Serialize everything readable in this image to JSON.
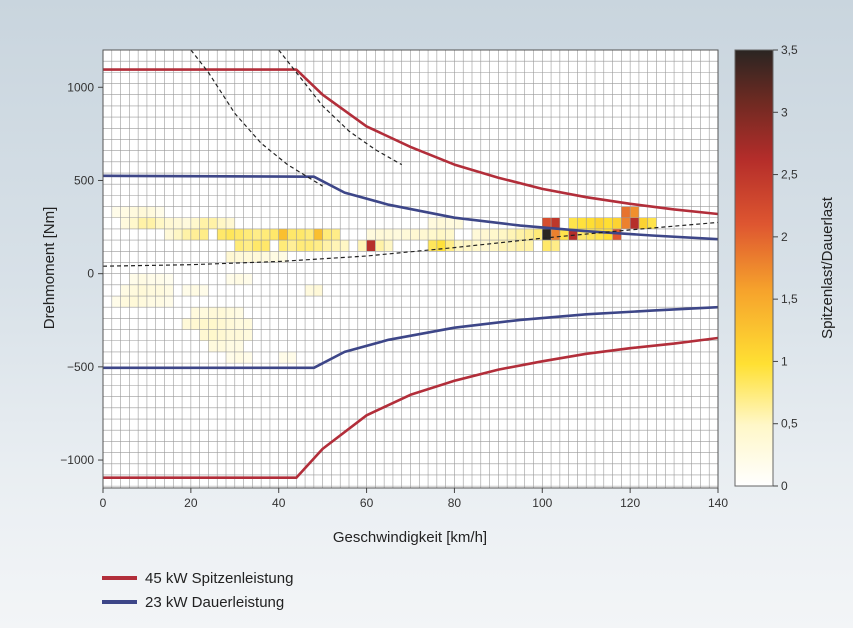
{
  "chart_data": {
    "type": "heatmap",
    "xlabel": "Geschwindigkeit [km/h]",
    "ylabel": "Drehmoment [Nm]",
    "colorbar_label": "Spitzenlast/Dauerlast",
    "xlim": [
      0,
      140
    ],
    "ylim": [
      -1150,
      1200
    ],
    "x_ticks": [
      0,
      20,
      40,
      60,
      80,
      100,
      120,
      140
    ],
    "x_tick_labels": [
      "0",
      "20",
      "40",
      "60",
      "80",
      "100",
      "120",
      "140"
    ],
    "y_ticks": [
      -1000,
      -500,
      0,
      500,
      1000
    ],
    "y_tick_labels": [
      "−1000",
      "−500",
      "0",
      "500",
      "1000"
    ],
    "colorbar_ticks": [
      0,
      0.5,
      1,
      1.5,
      2,
      2.5,
      3,
      3.5
    ],
    "colorbar_tick_labels": [
      "0",
      "0,5",
      "1",
      "1,5",
      "2",
      "2,5",
      "3",
      "3,5"
    ],
    "colorbar_range": [
      0,
      3.5
    ],
    "grid": true,
    "legend_position": "bottom-left",
    "series": [
      {
        "name": "45 kW Spitzenleistung",
        "color": "#b22e3a",
        "upper": [
          [
            0,
            1095
          ],
          [
            44,
            1095
          ],
          [
            50,
            960
          ],
          [
            60,
            790
          ],
          [
            70,
            680
          ],
          [
            80,
            585
          ],
          [
            90,
            515
          ],
          [
            100,
            455
          ],
          [
            110,
            410
          ],
          [
            120,
            375
          ],
          [
            130,
            345
          ],
          [
            140,
            320
          ]
        ],
        "lower": [
          [
            0,
            -1095
          ],
          [
            44,
            -1095
          ],
          [
            50,
            -940
          ],
          [
            60,
            -760
          ],
          [
            70,
            -650
          ],
          [
            80,
            -575
          ],
          [
            90,
            -515
          ],
          [
            100,
            -470
          ],
          [
            110,
            -430
          ],
          [
            120,
            -400
          ],
          [
            130,
            -375
          ],
          [
            140,
            -345
          ]
        ]
      },
      {
        "name": "23 kW Dauerleistung",
        "color": "#3d4688",
        "upper": [
          [
            0,
            525
          ],
          [
            48,
            520
          ],
          [
            55,
            435
          ],
          [
            65,
            370
          ],
          [
            80,
            300
          ],
          [
            95,
            258
          ],
          [
            110,
            228
          ],
          [
            125,
            205
          ],
          [
            140,
            185
          ]
        ],
        "lower": [
          [
            0,
            -505
          ],
          [
            48,
            -505
          ],
          [
            55,
            -420
          ],
          [
            65,
            -355
          ],
          [
            80,
            -290
          ],
          [
            95,
            -248
          ],
          [
            110,
            -218
          ],
          [
            125,
            -198
          ],
          [
            140,
            -180
          ]
        ]
      }
    ],
    "dashed_lines": [
      {
        "points": [
          [
            20,
            1200
          ],
          [
            24,
            1080
          ],
          [
            30,
            860
          ],
          [
            36,
            700
          ],
          [
            42,
            585
          ],
          [
            50,
            470
          ]
        ]
      },
      {
        "points": [
          [
            40,
            1200
          ],
          [
            44,
            1080
          ],
          [
            50,
            900
          ],
          [
            56,
            765
          ],
          [
            62,
            665
          ],
          [
            68,
            585
          ]
        ]
      },
      {
        "points": [
          [
            0,
            40
          ],
          [
            20,
            48
          ],
          [
            40,
            65
          ],
          [
            60,
            95
          ],
          [
            80,
            140
          ],
          [
            100,
            190
          ],
          [
            120,
            235
          ],
          [
            140,
            275
          ]
        ]
      }
    ],
    "cells": [
      [
        2,
        300,
        0.2
      ],
      [
        4,
        300,
        0.25
      ],
      [
        6,
        300,
        0.3
      ],
      [
        8,
        300,
        0.35
      ],
      [
        10,
        300,
        0.3
      ],
      [
        12,
        300,
        0.2
      ],
      [
        4,
        240,
        0.3
      ],
      [
        6,
        240,
        0.45
      ],
      [
        8,
        240,
        0.6
      ],
      [
        10,
        240,
        0.6
      ],
      [
        12,
        240,
        0.5
      ],
      [
        14,
        240,
        0.4
      ],
      [
        16,
        240,
        0.35
      ],
      [
        18,
        240,
        0.3
      ],
      [
        20,
        240,
        0.45
      ],
      [
        22,
        240,
        0.6
      ],
      [
        24,
        240,
        0.6
      ],
      [
        26,
        240,
        0.5
      ],
      [
        28,
        240,
        0.4
      ],
      [
        14,
        180,
        0.35
      ],
      [
        16,
        180,
        0.5
      ],
      [
        18,
        180,
        0.6
      ],
      [
        20,
        180,
        0.65
      ],
      [
        22,
        180,
        0.7
      ],
      [
        26,
        180,
        0.8
      ],
      [
        28,
        180,
        0.85
      ],
      [
        30,
        180,
        0.8
      ],
      [
        32,
        180,
        0.75
      ],
      [
        34,
        180,
        0.7
      ],
      [
        36,
        180,
        0.75
      ],
      [
        38,
        180,
        0.8
      ],
      [
        40,
        180,
        1.3
      ],
      [
        42,
        180,
        0.8
      ],
      [
        44,
        180,
        0.8
      ],
      [
        46,
        180,
        0.75
      ],
      [
        48,
        180,
        1.3
      ],
      [
        50,
        180,
        0.75
      ],
      [
        52,
        180,
        0.7
      ],
      [
        30,
        120,
        0.75
      ],
      [
        32,
        120,
        0.7
      ],
      [
        34,
        120,
        0.8
      ],
      [
        36,
        120,
        0.8
      ],
      [
        40,
        120,
        0.75
      ],
      [
        42,
        120,
        0.65
      ],
      [
        44,
        120,
        0.75
      ],
      [
        46,
        120,
        0.75
      ],
      [
        48,
        120,
        0.7
      ],
      [
        50,
        120,
        0.6
      ],
      [
        52,
        120,
        0.55
      ],
      [
        54,
        120,
        0.5
      ],
      [
        58,
        120,
        0.55
      ],
      [
        60,
        120,
        2.6
      ],
      [
        62,
        120,
        0.6
      ],
      [
        64,
        120,
        0.5
      ],
      [
        28,
        60,
        0.4
      ],
      [
        30,
        60,
        0.35
      ],
      [
        32,
        60,
        0.35
      ],
      [
        34,
        60,
        0.35
      ],
      [
        36,
        60,
        0.3
      ],
      [
        38,
        60,
        0.25
      ],
      [
        40,
        60,
        0.25
      ],
      [
        60,
        180,
        0.3
      ],
      [
        62,
        180,
        0.35
      ],
      [
        64,
        180,
        0.35
      ],
      [
        66,
        180,
        0.3
      ],
      [
        68,
        180,
        0.35
      ],
      [
        70,
        180,
        0.4
      ],
      [
        72,
        180,
        0.4
      ],
      [
        74,
        180,
        0.45
      ],
      [
        76,
        180,
        0.5
      ],
      [
        78,
        180,
        0.45
      ],
      [
        74,
        240,
        0.3
      ],
      [
        76,
        240,
        0.35
      ],
      [
        78,
        240,
        0.3
      ],
      [
        80,
        240,
        0.3
      ],
      [
        74,
        120,
        0.85
      ],
      [
        76,
        120,
        0.95
      ],
      [
        78,
        120,
        0.7
      ],
      [
        80,
        120,
        0.5
      ],
      [
        82,
        120,
        0.5
      ],
      [
        84,
        120,
        0.45
      ],
      [
        86,
        120,
        0.4
      ],
      [
        88,
        120,
        0.5
      ],
      [
        90,
        120,
        0.55
      ],
      [
        92,
        120,
        0.55
      ],
      [
        94,
        120,
        0.6
      ],
      [
        96,
        120,
        0.6
      ],
      [
        84,
        180,
        0.35
      ],
      [
        86,
        180,
        0.4
      ],
      [
        88,
        180,
        0.45
      ],
      [
        90,
        180,
        0.5
      ],
      [
        92,
        180,
        0.55
      ],
      [
        94,
        180,
        0.6
      ],
      [
        96,
        180,
        0.65
      ],
      [
        98,
        180,
        0.75
      ],
      [
        100,
        240,
        2.2
      ],
      [
        102,
        240,
        2.5
      ],
      [
        100,
        180,
        3.5
      ],
      [
        102,
        180,
        1.8
      ],
      [
        100,
        120,
        0.8
      ],
      [
        102,
        120,
        0.7
      ],
      [
        104,
        180,
        0.9
      ],
      [
        106,
        180,
        2.6
      ],
      [
        108,
        180,
        0.8
      ],
      [
        110,
        180,
        0.85
      ],
      [
        106,
        240,
        0.9
      ],
      [
        108,
        240,
        0.95
      ],
      [
        110,
        240,
        1.0
      ],
      [
        112,
        240,
        1.1
      ],
      [
        114,
        240,
        1.0
      ],
      [
        116,
        240,
        1.1
      ],
      [
        118,
        240,
        1.8
      ],
      [
        112,
        180,
        0.9
      ],
      [
        114,
        180,
        1.0
      ],
      [
        116,
        180,
        2.1
      ],
      [
        118,
        300,
        1.9
      ],
      [
        120,
        300,
        1.7
      ],
      [
        120,
        240,
        2.6
      ],
      [
        122,
        240,
        1.1
      ],
      [
        124,
        240,
        0.9
      ],
      [
        6,
        -60,
        0.2
      ],
      [
        8,
        -60,
        0.25
      ],
      [
        10,
        -60,
        0.2
      ],
      [
        12,
        -60,
        0.2
      ],
      [
        14,
        -60,
        0.15
      ],
      [
        4,
        -120,
        0.25
      ],
      [
        6,
        -120,
        0.3
      ],
      [
        8,
        -120,
        0.35
      ],
      [
        10,
        -120,
        0.3
      ],
      [
        12,
        -120,
        0.3
      ],
      [
        14,
        -120,
        0.25
      ],
      [
        18,
        -120,
        0.2
      ],
      [
        20,
        -120,
        0.25
      ],
      [
        22,
        -120,
        0.2
      ],
      [
        28,
        -60,
        0.2
      ],
      [
        30,
        -60,
        0.25
      ],
      [
        32,
        -60,
        0.2
      ],
      [
        46,
        -120,
        0.3
      ],
      [
        48,
        -120,
        0.35
      ],
      [
        2,
        -180,
        0.2
      ],
      [
        4,
        -180,
        0.3
      ],
      [
        6,
        -180,
        0.35
      ],
      [
        8,
        -180,
        0.3
      ],
      [
        10,
        -180,
        0.25
      ],
      [
        12,
        -180,
        0.25
      ],
      [
        14,
        -180,
        0.2
      ],
      [
        20,
        -240,
        0.3
      ],
      [
        22,
        -240,
        0.3
      ],
      [
        24,
        -240,
        0.35
      ],
      [
        26,
        -240,
        0.35
      ],
      [
        28,
        -240,
        0.3
      ],
      [
        30,
        -240,
        0.25
      ],
      [
        18,
        -300,
        0.35
      ],
      [
        20,
        -300,
        0.4
      ],
      [
        22,
        -300,
        0.45
      ],
      [
        24,
        -300,
        0.45
      ],
      [
        26,
        -300,
        0.4
      ],
      [
        28,
        -300,
        0.35
      ],
      [
        30,
        -300,
        0.3
      ],
      [
        32,
        -300,
        0.3
      ],
      [
        22,
        -360,
        0.4
      ],
      [
        24,
        -360,
        0.45
      ],
      [
        26,
        -360,
        0.4
      ],
      [
        28,
        -360,
        0.35
      ],
      [
        30,
        -360,
        0.35
      ],
      [
        32,
        -360,
        0.3
      ],
      [
        24,
        -420,
        0.3
      ],
      [
        26,
        -420,
        0.3
      ],
      [
        28,
        -420,
        0.25
      ],
      [
        30,
        -420,
        0.25
      ],
      [
        28,
        -480,
        0.2
      ],
      [
        30,
        -480,
        0.25
      ],
      [
        32,
        -480,
        0.2
      ],
      [
        40,
        -480,
        0.2
      ],
      [
        42,
        -480,
        0.2
      ]
    ]
  }
}
